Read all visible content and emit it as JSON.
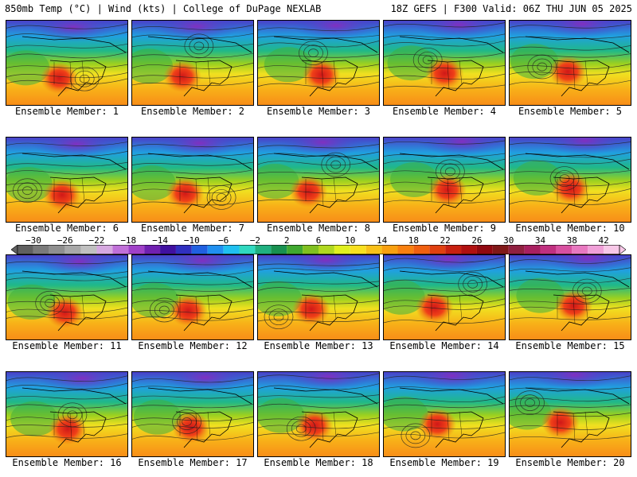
{
  "header": {
    "left": "850mb Temp (°C) | Wind (kts) | College of DuPage NEXLAB",
    "right": "18Z GEFS | F300 Valid: 06Z THU JUN 05 2025"
  },
  "members": [
    {
      "label": "Ensemble Member: 1"
    },
    {
      "label": "Ensemble Member: 2"
    },
    {
      "label": "Ensemble Member: 3"
    },
    {
      "label": "Ensemble Member: 4"
    },
    {
      "label": "Ensemble Member: 5"
    },
    {
      "label": "Ensemble Member: 6"
    },
    {
      "label": "Ensemble Member: 7"
    },
    {
      "label": "Ensemble Member: 8"
    },
    {
      "label": "Ensemble Member: 9"
    },
    {
      "label": "Ensemble Member: 10"
    },
    {
      "label": "Ensemble Member: 11"
    },
    {
      "label": "Ensemble Member: 12"
    },
    {
      "label": "Ensemble Member: 13"
    },
    {
      "label": "Ensemble Member: 14"
    },
    {
      "label": "Ensemble Member: 15"
    },
    {
      "label": "Ensemble Member: 16"
    },
    {
      "label": "Ensemble Member: 17"
    },
    {
      "label": "Ensemble Member: 18"
    },
    {
      "label": "Ensemble Member: 19"
    },
    {
      "label": "Ensemble Member: 20"
    }
  ],
  "colorbar": {
    "ticks": [
      "−30",
      "−26",
      "−22",
      "−18",
      "−14",
      "−10",
      "−6",
      "−2",
      "2",
      "6",
      "10",
      "14",
      "18",
      "22",
      "26",
      "30",
      "34",
      "38",
      "42"
    ],
    "colors": [
      "#606060",
      "#7a7a7a",
      "#8f8f8f",
      "#a8a8a8",
      "#c0c0c0",
      "#d6a8e0",
      "#c070d8",
      "#a040c8",
      "#7020b0",
      "#4010a0",
      "#3030c0",
      "#2060e0",
      "#2090f0",
      "#20c0f0",
      "#30d8c0",
      "#20b080",
      "#189050",
      "#40a830",
      "#80c020",
      "#b0d820",
      "#e0f020",
      "#f8e020",
      "#f8c018",
      "#f8a010",
      "#f88010",
      "#f06010",
      "#e04010",
      "#c82010",
      "#b01010",
      "#900810",
      "#801818",
      "#902040",
      "#a82060",
      "#c03080",
      "#d850a0",
      "#e878c0",
      "#f0a0d8",
      "#f8c8e8"
    ]
  }
}
